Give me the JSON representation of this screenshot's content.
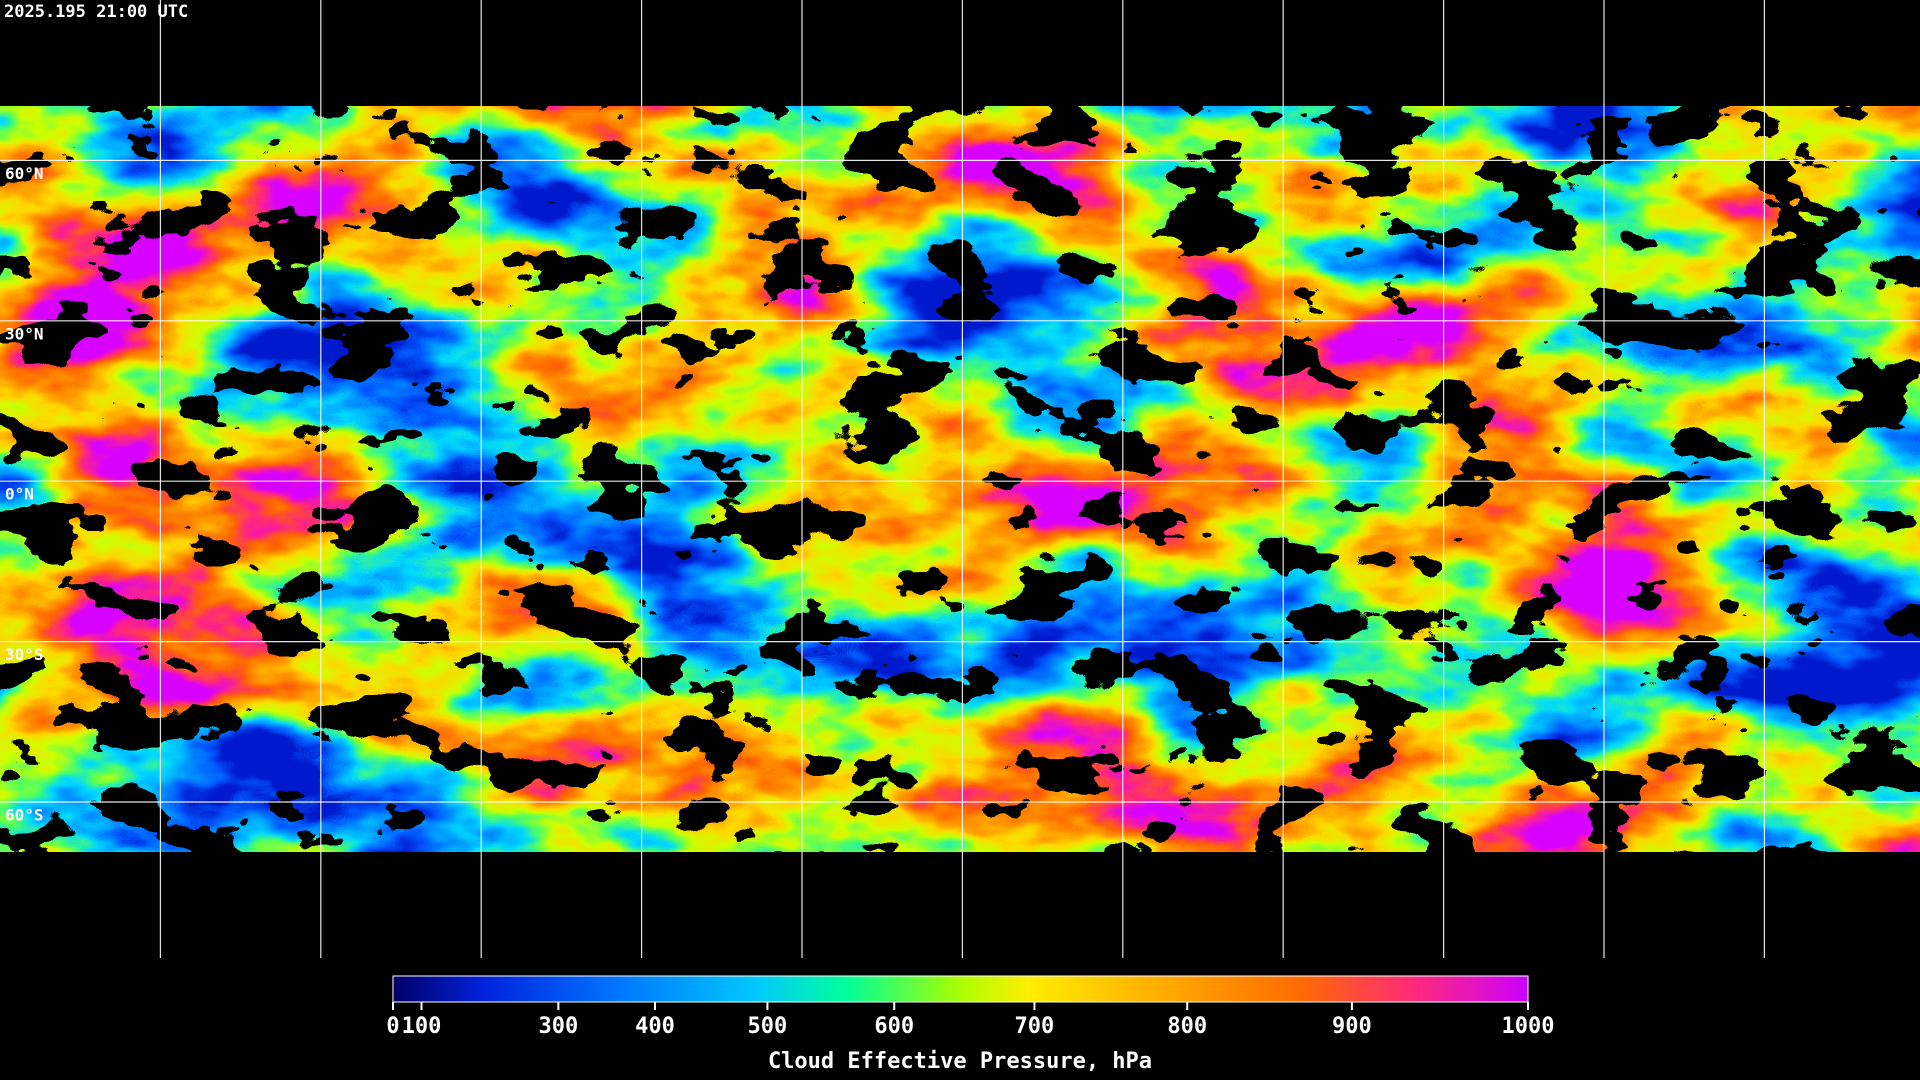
{
  "header": {
    "timestamp": "2025.195 21:00 UTC"
  },
  "map": {
    "lat_labels": [
      "60°N",
      "30°N",
      "0°N",
      "30°S",
      "60°S"
    ]
  },
  "colorbar": {
    "label": "Cloud Effective Pressure, hPa",
    "xlim": [
      0,
      1000
    ],
    "xticks": [
      0,
      100,
      300,
      400,
      500,
      600,
      700,
      800,
      900,
      1000
    ],
    "xscale": "power",
    "exponent": 1.6
  }
}
